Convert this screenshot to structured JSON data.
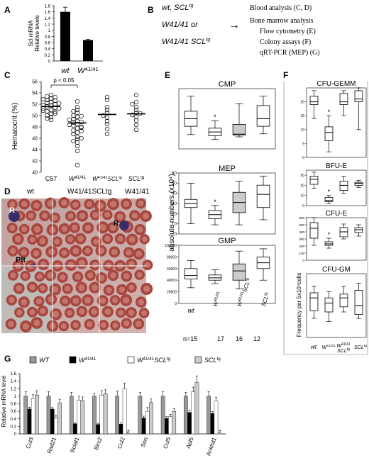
{
  "panel_letters": [
    "A",
    "B",
    "C",
    "D",
    "E",
    "F",
    "G"
  ],
  "colors": {
    "wt": "#999999",
    "w4141": "#000000",
    "wscl": "#ffffff",
    "scl": "#cccccc",
    "micro_bg": "#c9a8a8"
  },
  "panelB": {
    "left1": "wt, SCL",
    "left1_sup": "tg",
    "left2": "W41/41 or",
    "left3": "W41/41 SCL",
    "left3_sup": "tg",
    "arrow": "→",
    "right": [
      "Blood analysis (C, D)",
      "Bone marrow analysis",
      "Flow cytometry (E)",
      "Colony assays (F)",
      "qRT-PCR (MEP) (G)"
    ]
  },
  "panelD": {
    "labels": [
      "wt",
      "W41/41SCLtg",
      "W41/41"
    ],
    "insets": [
      "R",
      "R",
      "Plt"
    ]
  },
  "panelE": {
    "n_label": "n=15",
    "n": [
      "17",
      "16",
      "12"
    ]
  },
  "chart_data": [
    {
      "id": "A",
      "type": "bar",
      "ylabel": "Scl mRNA Relative levels",
      "ylim": [
        0,
        1.8
      ],
      "yticks": [
        0,
        0.2,
        0.4,
        0.6,
        0.8,
        1,
        1.2,
        1.4,
        1.6,
        1.8
      ],
      "yticklabels": [
        "0",
        "0.2",
        "0.4",
        "0.6",
        "0.8",
        "1",
        "1.2",
        "1.4",
        "1.6",
        "1.8"
      ],
      "categories": [
        "wt",
        "W41/41"
      ],
      "values": [
        1.6,
        0.68
      ],
      "errors": [
        0.15,
        0.02
      ]
    },
    {
      "id": "C",
      "type": "scatter",
      "ylabel": "Hematocrit (%)",
      "ylim": [
        40,
        56
      ],
      "yticks": [
        40,
        42,
        44,
        46,
        48,
        50,
        52,
        54,
        56
      ],
      "categories": [
        "C57",
        "W41/41",
        "W41/41SCLtg",
        "SCLtg"
      ],
      "means": [
        51.6,
        48.7,
        50.2,
        50.3
      ],
      "annotation": "p < 0.05",
      "points": [
        [
          53.6,
          53.4,
          53.0,
          52.8,
          52.6,
          52.4,
          52.2,
          52.0,
          51.8,
          51.6,
          51.4,
          51.2,
          51.0,
          50.8,
          50.6,
          50.3,
          50.0,
          49.8,
          49.5,
          51.9,
          52.9,
          50.9,
          53.2,
          52.1,
          51.3,
          50.4,
          49.2
        ],
        [
          52.5,
          51.5,
          51.0,
          50.5,
          50.0,
          49.7,
          49.4,
          49.0,
          48.8,
          48.5,
          48.2,
          48.0,
          47.7,
          47.4,
          47.0,
          46.7,
          46.3,
          45.9,
          45.5,
          44.6,
          43.7,
          41.3,
          49.9,
          48.4,
          47.2,
          46.0,
          50.8,
          45.2,
          48.9,
          47.9,
          49.2
        ],
        [
          53.2,
          52.8,
          51.5,
          51.0,
          50.5,
          50.0,
          49.6,
          49.0,
          48.5,
          47.6,
          46.7
        ],
        [
          53.6,
          52.4,
          51.5,
          51.0,
          50.5,
          50.1,
          49.8,
          49.1,
          48.4,
          47.5,
          52.0,
          50.4
        ]
      ]
    },
    {
      "id": "E-CMP",
      "type": "box",
      "title": "CMP",
      "ylim": [
        0,
        16
      ],
      "ylabel": "absolute numbers (x10⁴)",
      "categories": [
        "wt",
        "W41/41",
        "W41/41SCLtg",
        "SCLtg"
      ],
      "boxes": [
        [
          3.8,
          6,
          8,
          10,
          14
        ],
        [
          2.5,
          3.5,
          4.5,
          5.5,
          7.5
        ],
        [
          3.2,
          3.7,
          3.9,
          6.5,
          12
        ],
        [
          4,
          6,
          8,
          11.5,
          14
        ]
      ],
      "star": 1
    },
    {
      "id": "E-MEP",
      "type": "box",
      "title": "MEP",
      "ylim": [
        0,
        60
      ],
      "yticks": [
        0,
        10,
        20,
        30,
        40,
        50,
        60
      ],
      "categories": [
        "wt",
        "W41/41",
        "W41/41SCLtg",
        "SCLtg"
      ],
      "boxes": [
        [
          10,
          26,
          30,
          34,
          50
        ],
        [
          9,
          15,
          19,
          23,
          28
        ],
        [
          9,
          21,
          31,
          41,
          52
        ],
        [
          14,
          26,
          39,
          48,
          57
        ]
      ],
      "star": 1
    },
    {
      "id": "E-GMP",
      "type": "box",
      "title": "GMP",
      "ylim": [
        0,
        100000
      ],
      "yticks": [
        0,
        20000,
        40000,
        60000,
        80000,
        100000
      ],
      "categories": [
        "wt",
        "W41/41",
        "W41/41SCLtg",
        "SCLtg"
      ],
      "boxes": [
        [
          27000,
          42000,
          48000,
          60000,
          74000
        ],
        [
          34000,
          40000,
          44000,
          49000,
          58000
        ],
        [
          25000,
          40000,
          56000,
          68000,
          90000
        ],
        [
          40000,
          60000,
          70000,
          80000,
          94000
        ]
      ]
    },
    {
      "id": "F-CFU-GEMM",
      "type": "box",
      "title": "CFU-GEMM",
      "ylim": [
        0,
        25
      ],
      "yticks": [
        0,
        5,
        10,
        15,
        20
      ],
      "categories": [
        "wt",
        "W41/41",
        "W41/41SCLtg",
        "SCLtg"
      ],
      "boxes": [
        [
          14,
          19,
          20,
          22,
          24
        ],
        [
          2,
          6,
          9,
          11,
          15
        ],
        [
          15,
          19,
          20,
          23,
          24
        ],
        [
          10,
          20,
          21,
          24,
          25
        ]
      ],
      "star": 1
    },
    {
      "id": "F-BFU-E",
      "type": "box",
      "title": "BFU-E",
      "ylim": [
        0,
        35
      ],
      "yticks": [
        0,
        10,
        20,
        30
      ],
      "categories": [
        "wt",
        "W41/41",
        "W41/41SCLtg",
        "SCLtg"
      ],
      "boxes": [
        [
          17,
          21,
          26,
          29,
          33
        ],
        [
          2,
          4,
          5,
          8,
          10
        ],
        [
          12,
          15,
          20,
          24,
          29
        ],
        [
          18,
          20,
          22,
          23,
          25
        ]
      ],
      "star": 1
    },
    {
      "id": "F-CFU-E",
      "type": "box",
      "title": "CFU-E",
      "ylim": [
        0,
        600
      ],
      "yticks": [
        0,
        100,
        200,
        300,
        400,
        500,
        600
      ],
      "categories": [
        "wt",
        "W41/41",
        "W41/41SCLtg",
        "SCLtg"
      ],
      "boxes": [
        [
          210,
          310,
          450,
          530,
          600
        ],
        [
          170,
          210,
          230,
          260,
          310
        ],
        [
          300,
          330,
          400,
          460,
          510
        ],
        [
          340,
          390,
          430,
          460,
          500
        ]
      ],
      "star": 1
    },
    {
      "id": "F-CFU-GM",
      "type": "box",
      "title": "CFU-GM",
      "ylabel": "Frequency per 5x10⁴cells",
      "categories": [
        "wt",
        "W41/41",
        "W41/41SCLtg",
        "SCLtg"
      ],
      "boxes": [
        [
          30,
          42,
          62,
          70,
          80
        ],
        [
          25,
          40,
          54,
          62,
          72
        ],
        [
          40,
          48,
          62,
          68,
          80
        ],
        [
          30,
          36,
          50,
          74,
          85
        ]
      ]
    },
    {
      "id": "G",
      "type": "bar",
      "ylabel": "Relative mRNA level",
      "ylim": [
        0,
        1.6
      ],
      "yticks": [
        0,
        0.2,
        0.4,
        0.6,
        0.8,
        1,
        1.2,
        1.4,
        1.6
      ],
      "yticklabels": [
        "0",
        "0.2",
        "0.4",
        "0.6",
        "0.8",
        "1",
        "1.2",
        "1.4",
        "1.6"
      ],
      "legend": [
        "WT",
        "W41/41",
        "W41/41SCLtg",
        "SCLtg"
      ],
      "categories": [
        "Cul3",
        "Rad21",
        "Bclaf1",
        "Birc2",
        "Cul2",
        "Son",
        "Cul5",
        "Apl5",
        "Ankhd1"
      ],
      "series": [
        {
          "values": [
            1.0,
            1.0,
            1.0,
            1.0,
            1.0,
            1.0,
            1.0,
            1.0,
            1.0
          ],
          "errors": [
            0.12,
            0.12,
            0.1,
            0.08,
            0.14,
            0.1,
            0.12,
            0.1,
            0.12
          ]
        },
        {
          "values": [
            0.66,
            0.66,
            0.27,
            0.25,
            0.26,
            0.42,
            0.41,
            0.57,
            0.54
          ],
          "errors": [
            0.05,
            0.04,
            0.03,
            0.03,
            0.04,
            0.05,
            0.05,
            0.06,
            0.05
          ]
        },
        {
          "values": [
            0.94,
            0.42,
            0.9,
            1.03,
            1.2,
            0.6,
            0.46,
            1.12,
            0.87
          ],
          "errors": [
            0.1,
            0.08,
            0.1,
            0.12,
            0.15,
            0.1,
            0.06,
            0.12,
            0.1
          ]
        },
        {
          "values": [
            1.03,
            0.82,
            0.88,
            1.07,
            null,
            0.83,
            0.6,
            1.36,
            null
          ],
          "errors": [
            0.12,
            0.1,
            0.1,
            0.1,
            0,
            0.1,
            0.07,
            0.18,
            0
          ]
        }
      ],
      "missing_marker": "#"
    }
  ]
}
